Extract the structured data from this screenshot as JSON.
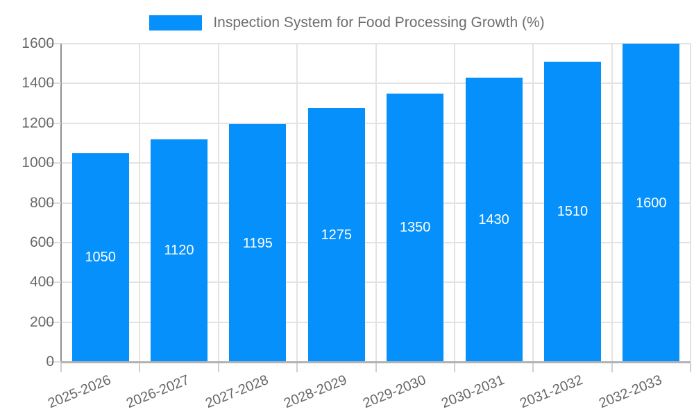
{
  "legend": {
    "label": "Inspection System for Food Processing Growth (%)"
  },
  "chart_data": {
    "type": "bar",
    "title": "",
    "series_name": "Inspection System for Food Processing Growth (%)",
    "categories": [
      "2025-2026",
      "2026-2027",
      "2027-2028",
      "2028-2029",
      "2029-2030",
      "2030-2031",
      "2031-2032",
      "2032-2033"
    ],
    "values": [
      1050,
      1120,
      1195,
      1275,
      1350,
      1430,
      1510,
      1600
    ],
    "xlabel": "",
    "ylabel": "",
    "ylim": [
      0,
      1600
    ],
    "yticks": [
      0,
      200,
      400,
      600,
      800,
      1000,
      1200,
      1400,
      1600
    ],
    "grid": true,
    "legend_position": "top",
    "bar_color": "#0590fb",
    "value_label_color": "#ffffff",
    "tick_label_color": "#686868",
    "gridline_color": "#e3e3e3"
  }
}
